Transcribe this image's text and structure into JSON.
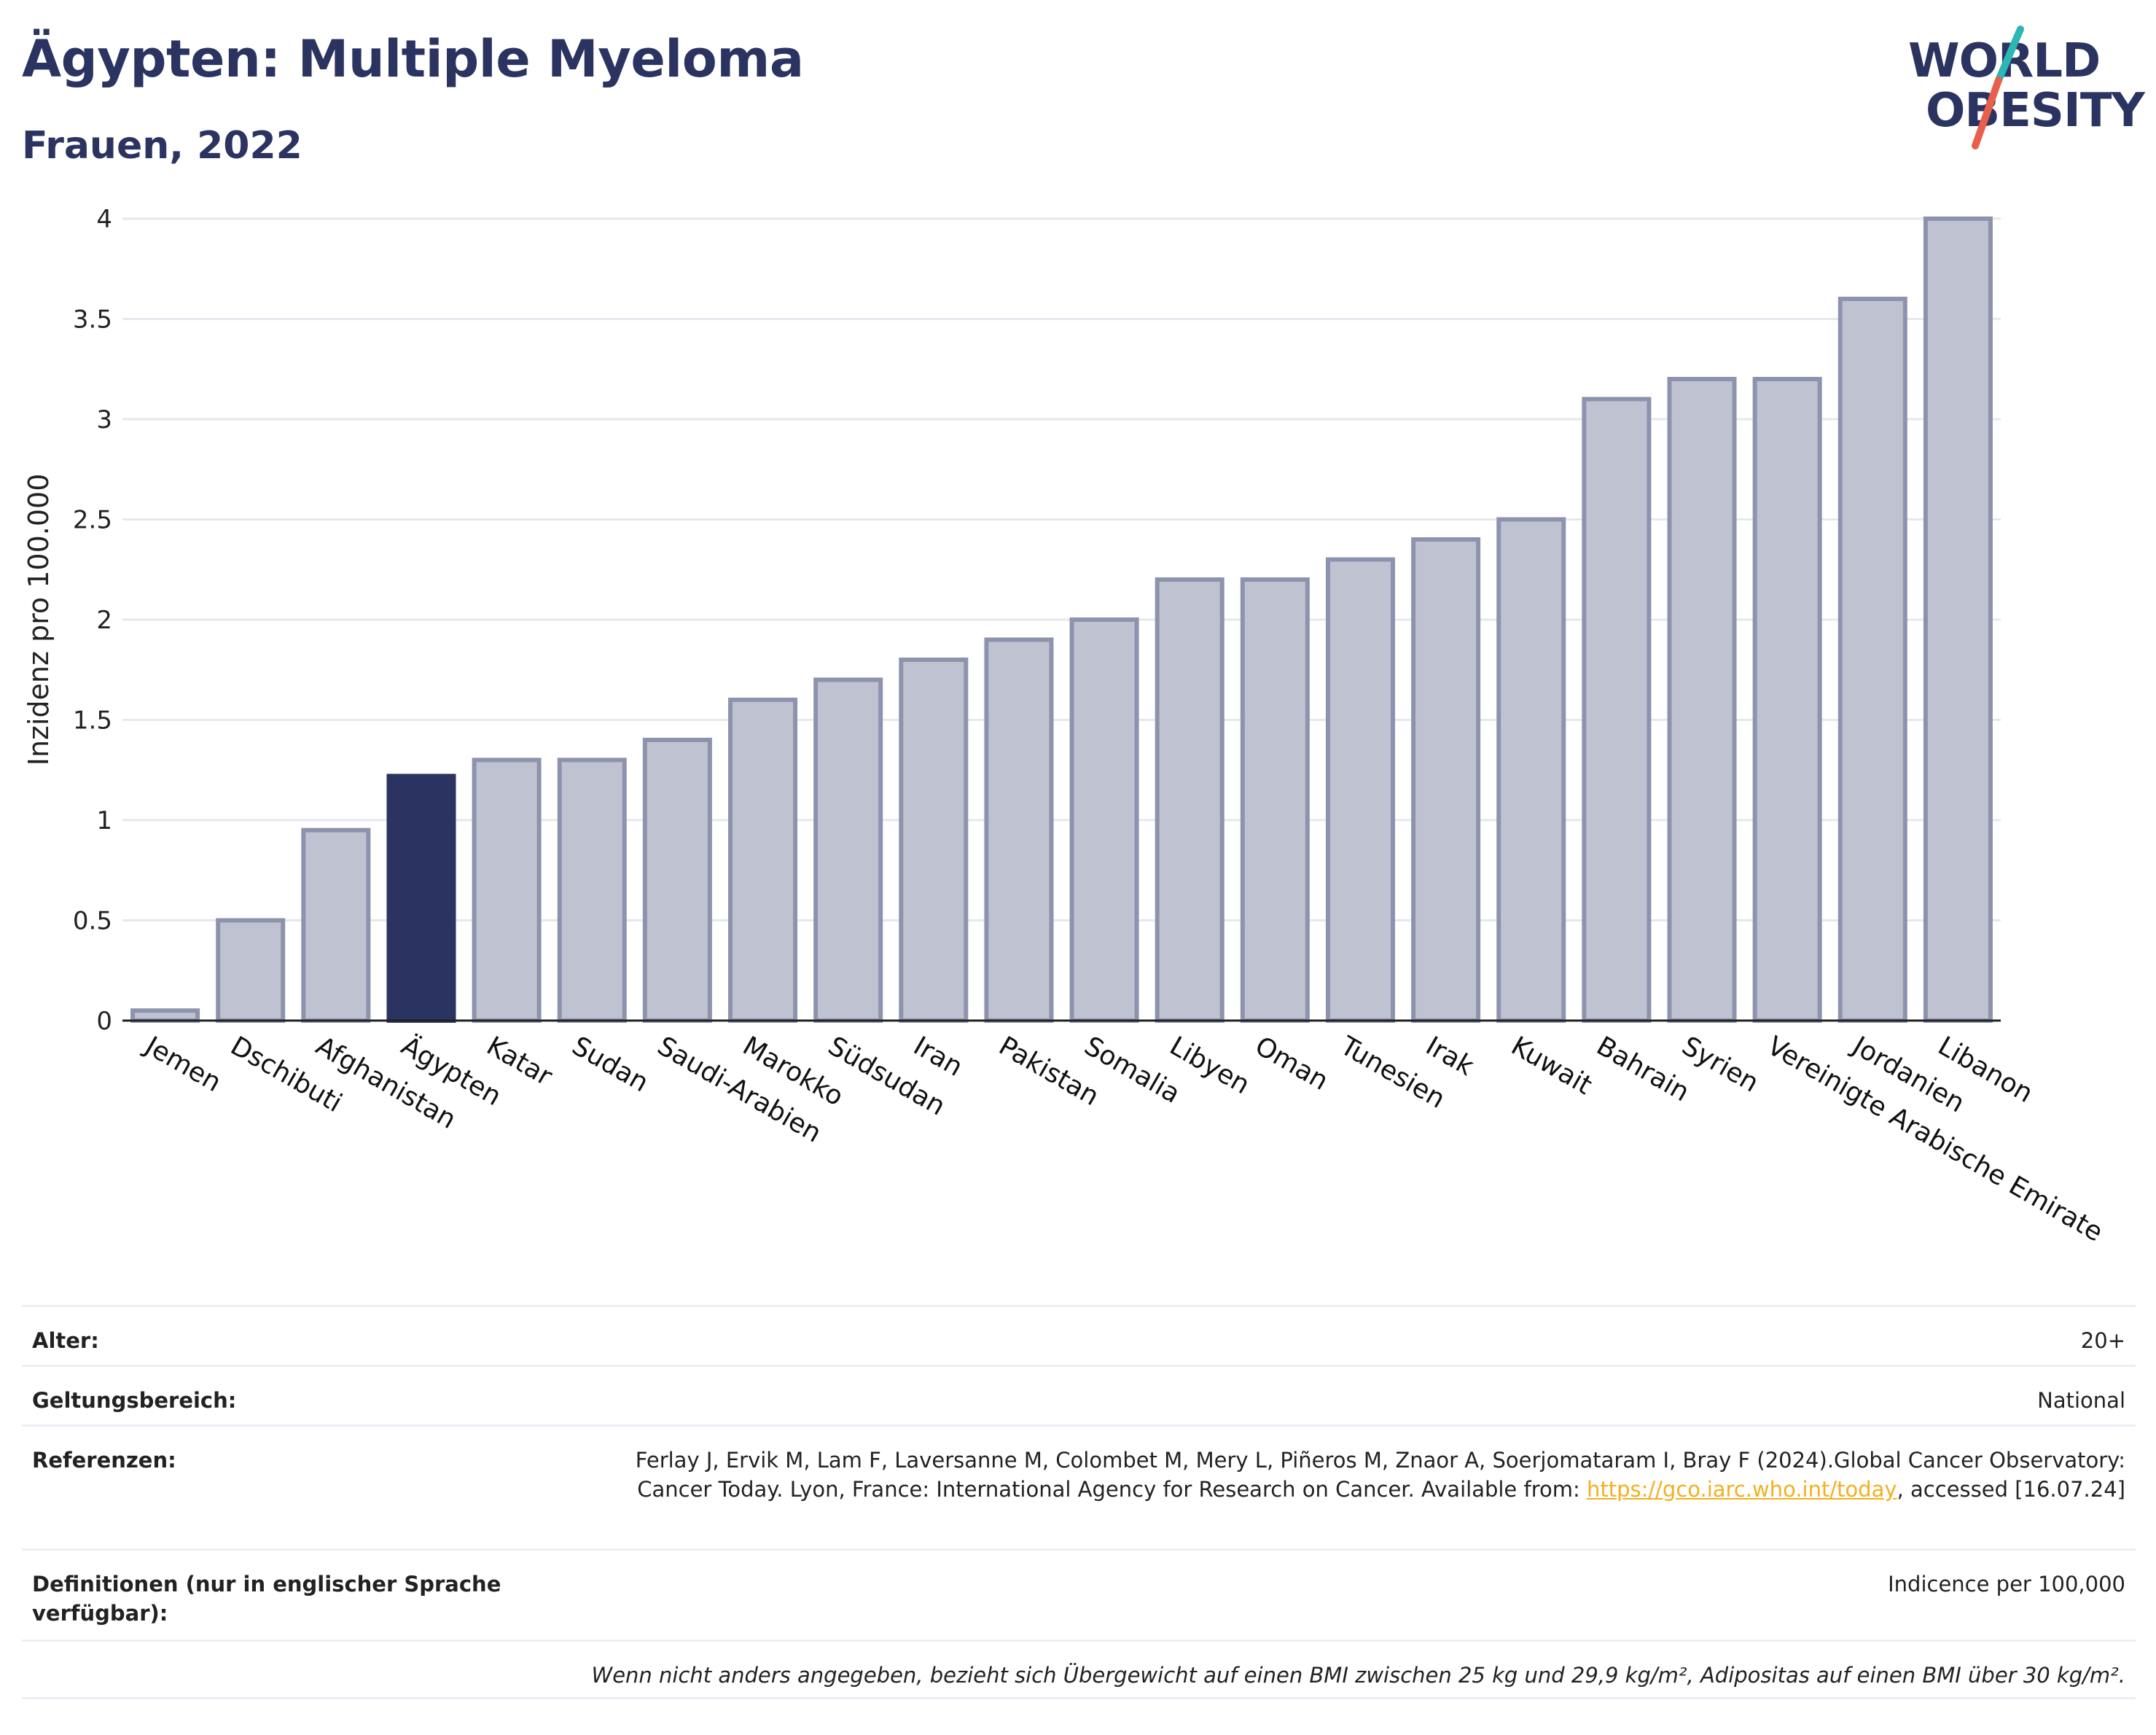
{
  "header": {
    "title": "Ägypten: Multiple Myeloma",
    "subtitle": "Frauen, 2022"
  },
  "logo": {
    "line1": "WORLD",
    "line2": "OBESITY",
    "colors": {
      "text": "#2b3460",
      "slash_top": "#2bb7b3",
      "slash_bottom": "#e8604c"
    }
  },
  "chart_data": {
    "type": "bar",
    "ylabel": "Inzidenz pro 100.000",
    "ylim": [
      0,
      4
    ],
    "yticks": [
      0,
      0.5,
      1,
      1.5,
      2,
      2.5,
      3,
      3.5,
      4
    ],
    "ytick_labels": [
      "0",
      "0.5",
      "1",
      "1.5",
      "2",
      "2.5",
      "3",
      "3.5",
      "4"
    ],
    "grid": true,
    "highlight": "Ägypten",
    "colors": {
      "bar": "#bfc3d1",
      "bar_stroke": "#8d93ad",
      "highlight": "#2b3460",
      "grid": "#e6e8ef"
    },
    "categories": [
      "Jemen",
      "Dschibuti",
      "Afghanistan",
      "Ägypten",
      "Katar",
      "Sudan",
      "Saudi-Arabien",
      "Marokko",
      "Südsudan",
      "Iran",
      "Pakistan",
      "Somalia",
      "Libyen",
      "Oman",
      "Tunesien",
      "Irak",
      "Kuwait",
      "Bahrain",
      "Syrien",
      "Vereinigte Arabische Emirate",
      "Jordanien",
      "Libanon"
    ],
    "values": [
      0.05,
      0.5,
      0.95,
      1.22,
      1.3,
      1.3,
      1.4,
      1.6,
      1.7,
      1.8,
      1.9,
      2.0,
      2.2,
      2.2,
      2.3,
      2.4,
      2.5,
      3.1,
      3.2,
      3.2,
      3.6,
      4.0
    ]
  },
  "info": {
    "age": {
      "label": "Alter:",
      "value": "20+"
    },
    "scope": {
      "label": "Geltungsbereich:",
      "value": "National"
    },
    "refs": {
      "label": "Referenzen:",
      "text1": "Ferlay J, Ervik M, Lam F, Laversanne M, Colombet M, Mery L, Piñeros M, Znaor A, Soerjomataram I, Bray F (2024).Global Cancer Observatory: Cancer Today. Lyon, France: International Agency for Research on Cancer. Available from: ",
      "link": "https://gco.iarc.who.int/today",
      "text2": ", accessed [16.07.24]"
    },
    "defs": {
      "label": "Definitionen (nur in englischer Sprache verfügbar):",
      "value": "Indicence per 100,000"
    },
    "note": "Wenn nicht anders angegeben, bezieht sich Übergewicht auf einen BMI zwischen 25 kg und 29,9 kg/m², Adipositas auf einen BMI über 30 kg/m²."
  }
}
